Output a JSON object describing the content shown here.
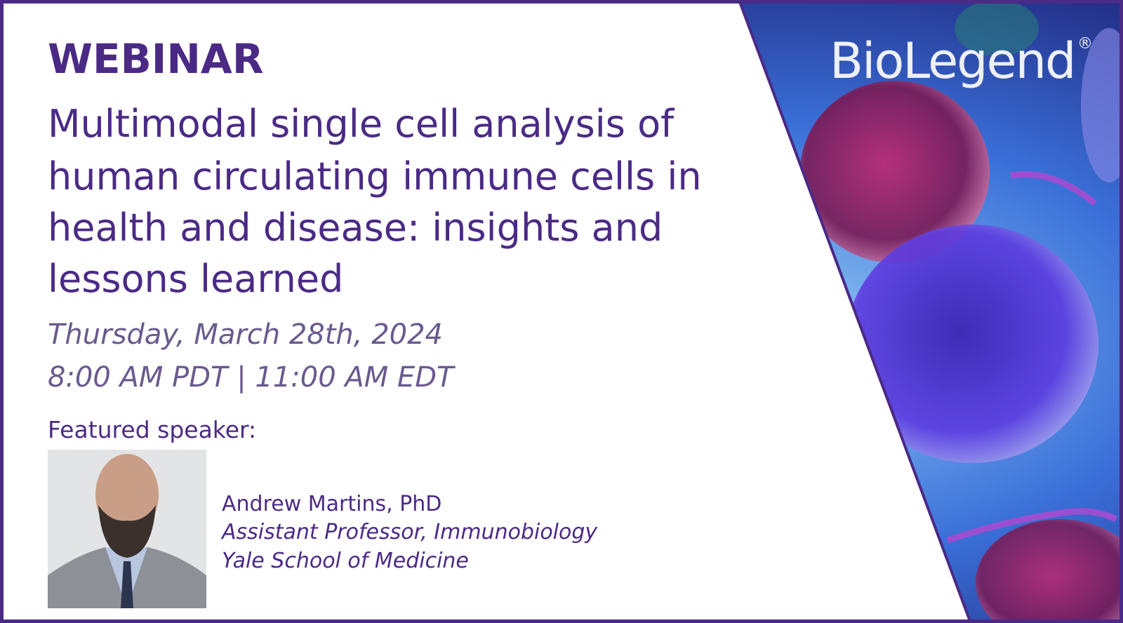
{
  "header": {
    "label": "WEBINAR",
    "title_lines": [
      "Multimodal single cell analysis of",
      "human circulating immune cells in",
      "health and disease: insights and",
      "lessons learned"
    ]
  },
  "schedule": {
    "date": "Thursday, March 28th, 2024",
    "time": "8:00 AM PDT | 11:00 AM EDT"
  },
  "speaker": {
    "heading": "Featured speaker:",
    "name": "Andrew Martins, PhD",
    "role": "Assistant Professor, Immunobiology",
    "affiliation": "Yale School of Medicine"
  },
  "brand": {
    "logo": "BioLegend",
    "mark": "®"
  }
}
